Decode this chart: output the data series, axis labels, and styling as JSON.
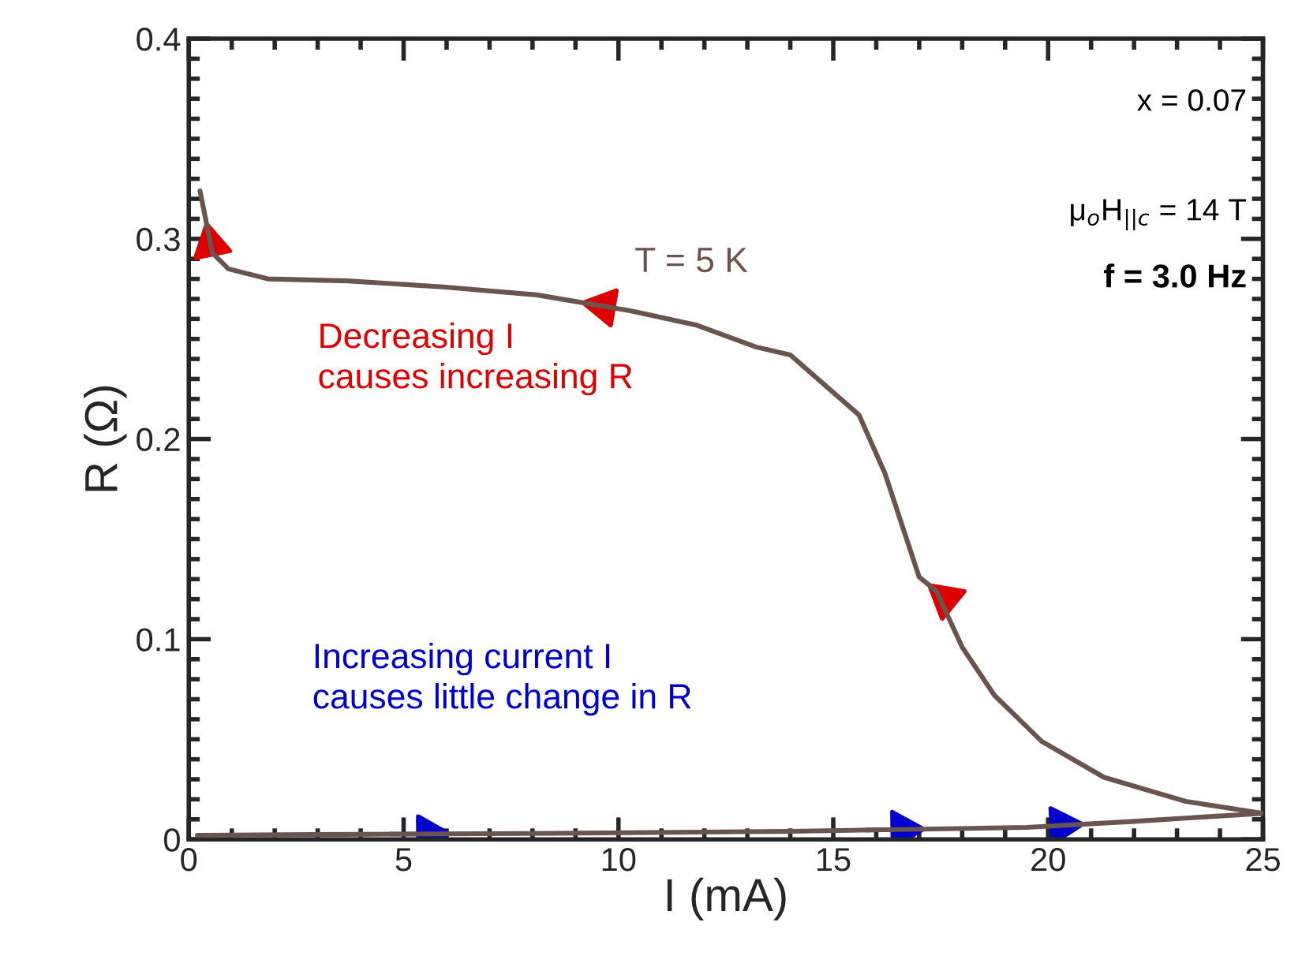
{
  "chart_data": {
    "type": "line",
    "xlabel": "I (mA)",
    "ylabel": "R (Ω)",
    "xlim": [
      0,
      25
    ],
    "ylim": [
      0,
      0.4
    ],
    "xticks": [
      0,
      5,
      10,
      15,
      20,
      25
    ],
    "yticks": [
      0,
      0.1,
      0.2,
      0.3,
      0.4
    ],
    "grid": false,
    "line_style": "solid",
    "series": [
      {
        "color": "#6b544e",
        "x": [
          25,
          23.2,
          21.3,
          19.85,
          18.75,
          18.0,
          17.4,
          17.0,
          16.2,
          15.6,
          14.0,
          13.2,
          11.8,
          10.3,
          8.1,
          5.9,
          3.7,
          1.84,
          0.92,
          0.55,
          0.26
        ],
        "values": [
          0.013,
          0.019,
          0.031,
          0.049,
          0.072,
          0.096,
          0.124,
          0.131,
          0.183,
          0.212,
          0.242,
          0.246,
          0.257,
          0.264,
          0.272,
          0.276,
          0.279,
          0.28,
          0.285,
          0.293,
          0.324
        ]
      },
      {
        "color": "#6b544e",
        "x": [
          0.2,
          2.9,
          8.5,
          14.0,
          19.5,
          22.0,
          25
        ],
        "values": [
          0.002,
          0.0024,
          0.003,
          0.004,
          0.006,
          0.009,
          0.013
        ]
      }
    ],
    "annotations": [
      "x = 0.07",
      "μ$_{o}$H$_{||c}$ = 14 T",
      "f = 3.0 Hz",
      "T = 5 K",
      "Decreasing I\ncauses increasing R",
      "Increasing current I\ncauses little change in R"
    ]
  }
}
